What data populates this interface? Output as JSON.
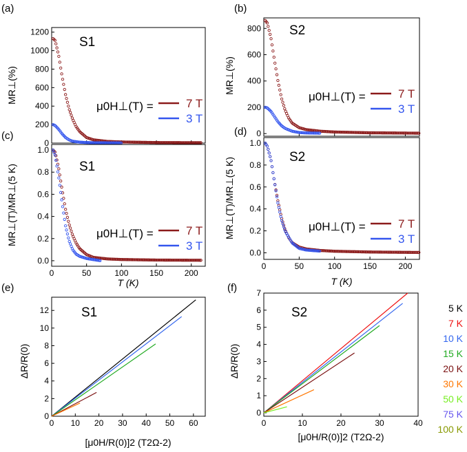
{
  "colors": {
    "red_series": "#8b1a1a",
    "blue_series": "#3355ee"
  },
  "legend": {
    "prefix": "μ0H⊥(T) =",
    "entries": [
      {
        "label": "7 T",
        "color": "#8b1a1a"
      },
      {
        "label": "3 T",
        "color": "#3355ee"
      }
    ]
  },
  "temp_legend": [
    {
      "label": "5 K",
      "color": "#000000"
    },
    {
      "label": "7 K",
      "color": "#ee1111"
    },
    {
      "label": "10 K",
      "color": "#3366ee"
    },
    {
      "label": "15 K",
      "color": "#22aa22"
    },
    {
      "label": "20 K",
      "color": "#7a1010"
    },
    {
      "label": "30 K",
      "color": "#ff7700"
    },
    {
      "label": "50 K",
      "color": "#77ee22"
    },
    {
      "label": "75 K",
      "color": "#6655ee"
    },
    {
      "label": "100 K",
      "color": "#889900"
    }
  ],
  "chart_data": [
    {
      "panel": "(a)",
      "sample": "S1",
      "type": "scatter",
      "ylabel": "MR⊥(%)",
      "xlabel": "",
      "xlim": [
        0,
        220
      ],
      "ylim": [
        0,
        1250
      ],
      "xticks": [
        0,
        50,
        100,
        150,
        200
      ],
      "yticks": [
        0,
        200,
        400,
        600,
        800,
        1000,
        1200
      ],
      "show_x_ticklabels": false,
      "series": [
        {
          "name": "7 T",
          "color": "#8b1a1a",
          "x": [
            2,
            5,
            10,
            15,
            20,
            25,
            30,
            35,
            40,
            50,
            60,
            80,
            100,
            150,
            215
          ],
          "y": [
            1130,
            1110,
            950,
            720,
            520,
            370,
            260,
            180,
            125,
            60,
            35,
            18,
            12,
            6,
            4
          ]
        },
        {
          "name": "3 T",
          "color": "#3355ee",
          "x": [
            2,
            5,
            10,
            15,
            20,
            25,
            30,
            40,
            50,
            60,
            80,
            100
          ],
          "y": [
            200,
            190,
            150,
            100,
            60,
            35,
            20,
            10,
            6,
            4,
            3,
            2
          ]
        }
      ]
    },
    {
      "panel": "(b)",
      "sample": "S2",
      "type": "scatter",
      "ylabel": "MR⊥(%)",
      "xlabel": "",
      "xlim": [
        0,
        220
      ],
      "ylim": [
        -20,
        880
      ],
      "xticks": [
        0,
        50,
        100,
        150,
        200
      ],
      "yticks": [
        0,
        200,
        400,
        600,
        800
      ],
      "show_x_ticklabels": false,
      "series": [
        {
          "name": "7 T",
          "color": "#8b1a1a",
          "x": [
            2,
            5,
            10,
            15,
            20,
            25,
            30,
            35,
            40,
            50,
            60,
            80,
            100,
            150,
            220
          ],
          "y": [
            860,
            840,
            730,
            560,
            400,
            270,
            180,
            120,
            80,
            45,
            30,
            18,
            12,
            6,
            3
          ]
        },
        {
          "name": "3 T",
          "color": "#3355ee",
          "x": [
            2,
            5,
            10,
            15,
            20,
            25,
            30,
            40,
            50,
            60,
            80
          ],
          "y": [
            200,
            195,
            170,
            130,
            90,
            60,
            40,
            18,
            8,
            5,
            3
          ]
        }
      ]
    },
    {
      "panel": "(c)",
      "sample": "S1",
      "type": "scatter",
      "ylabel": "MR⊥(T)/MR⊥(5 K)",
      "xlabel": "T (K)",
      "xlim": [
        0,
        220
      ],
      "ylim": [
        -0.05,
        1.05
      ],
      "xticks": [
        0,
        50,
        100,
        150,
        200
      ],
      "yticks": [
        0.0,
        0.2,
        0.4,
        0.6,
        0.8,
        1.0
      ],
      "show_x_ticklabels": true,
      "series": [
        {
          "name": "7 T",
          "color": "#8b1a1a",
          "x": [
            2,
            5,
            10,
            15,
            20,
            25,
            30,
            35,
            40,
            50,
            60,
            80,
            100,
            150,
            215
          ],
          "y": [
            1.0,
            0.98,
            0.84,
            0.64,
            0.46,
            0.33,
            0.23,
            0.16,
            0.11,
            0.055,
            0.03,
            0.016,
            0.011,
            0.006,
            0.004
          ]
        },
        {
          "name": "3 T",
          "color": "#3355ee",
          "x": [
            2,
            5,
            10,
            15,
            20,
            25,
            30,
            35,
            40,
            50,
            60,
            70
          ],
          "y": [
            1.0,
            0.95,
            0.76,
            0.52,
            0.31,
            0.18,
            0.1,
            0.06,
            0.04,
            0.02,
            0.01,
            0.0
          ]
        }
      ]
    },
    {
      "panel": "(d)",
      "sample": "S2",
      "type": "scatter",
      "ylabel": "MR⊥(T)/MR⊥(5 K)",
      "xlabel": "T (K)",
      "xlim": [
        0,
        220
      ],
      "ylim": [
        -0.06,
        1.05
      ],
      "xticks": [
        0,
        50,
        100,
        150,
        200
      ],
      "yticks": [
        0.0,
        0.2,
        0.4,
        0.6,
        0.8,
        1.0
      ],
      "show_x_ticklabels": true,
      "series": [
        {
          "name": "7 T",
          "color": "#8b1a1a",
          "x": [
            2,
            5,
            10,
            15,
            20,
            25,
            30,
            35,
            40,
            50,
            60,
            80,
            100,
            150,
            220
          ],
          "y": [
            1.0,
            0.97,
            0.85,
            0.65,
            0.47,
            0.32,
            0.21,
            0.14,
            0.093,
            0.052,
            0.035,
            0.021,
            0.014,
            0.007,
            0.003
          ]
        },
        {
          "name": "3 T",
          "color": "#3355ee",
          "x": [
            2,
            5,
            10,
            15,
            20,
            25,
            30,
            40,
            50,
            60,
            80
          ],
          "y": [
            1.0,
            0.97,
            0.85,
            0.65,
            0.45,
            0.3,
            0.2,
            0.09,
            0.04,
            0.025,
            0.015
          ]
        }
      ]
    },
    {
      "panel": "(e)",
      "sample": "S1",
      "type": "line",
      "ylabel": "ΔR/R(0)",
      "xlabel": "[μ0H/R(0)]2 (T2Ω-2)",
      "xlim": [
        0,
        65
      ],
      "ylim": [
        0,
        13.5
      ],
      "xticks": [
        0,
        10,
        20,
        30,
        40,
        50,
        60
      ],
      "yticks": [
        0,
        2,
        4,
        6,
        8,
        10,
        12
      ],
      "show_x_ticklabels": true,
      "series": [
        {
          "name": "5 K",
          "color": "#000000",
          "x": [
            0,
            61
          ],
          "y": [
            0,
            13.2
          ]
        },
        {
          "name": "10 K",
          "color": "#3366ee",
          "x": [
            0,
            55
          ],
          "y": [
            0,
            11.3
          ]
        },
        {
          "name": "15 K",
          "color": "#22aa22",
          "x": [
            0,
            44
          ],
          "y": [
            0,
            8.2
          ]
        },
        {
          "name": "20 K",
          "color": "#7a1010",
          "x": [
            0,
            19
          ],
          "y": [
            0,
            2.7
          ]
        },
        {
          "name": "30 K",
          "color": "#ff7700",
          "x": [
            0,
            12
          ],
          "y": [
            0,
            1.5
          ]
        }
      ]
    },
    {
      "panel": "(f)",
      "sample": "S2",
      "type": "line",
      "ylabel": "ΔR/R(0)",
      "xlabel": "[μ0H/R(0)]2 (T2Ω-2)",
      "xlim": [
        0,
        40
      ],
      "ylim": [
        -0.2,
        7
      ],
      "xticks": [
        0,
        10,
        20,
        30,
        40
      ],
      "yticks": [
        0,
        1,
        2,
        3,
        4,
        5,
        6,
        7
      ],
      "show_x_ticklabels": true,
      "series": [
        {
          "name": "7 K",
          "color": "#ee1111",
          "x": [
            0,
            37.3
          ],
          "y": [
            0,
            7.0
          ]
        },
        {
          "name": "10 K",
          "color": "#3366ee",
          "x": [
            0,
            36
          ],
          "y": [
            0,
            6.4
          ]
        },
        {
          "name": "15 K",
          "color": "#22aa22",
          "x": [
            0,
            30
          ],
          "y": [
            0,
            5.1
          ]
        },
        {
          "name": "20 K",
          "color": "#7a1010",
          "x": [
            0,
            23.5
          ],
          "y": [
            0,
            3.5
          ]
        },
        {
          "name": "30 K",
          "color": "#ff7700",
          "x": [
            0,
            13
          ],
          "y": [
            0,
            1.35
          ]
        },
        {
          "name": "50 K",
          "color": "#77ee22",
          "x": [
            0,
            6
          ],
          "y": [
            0,
            0.35
          ]
        }
      ]
    }
  ]
}
